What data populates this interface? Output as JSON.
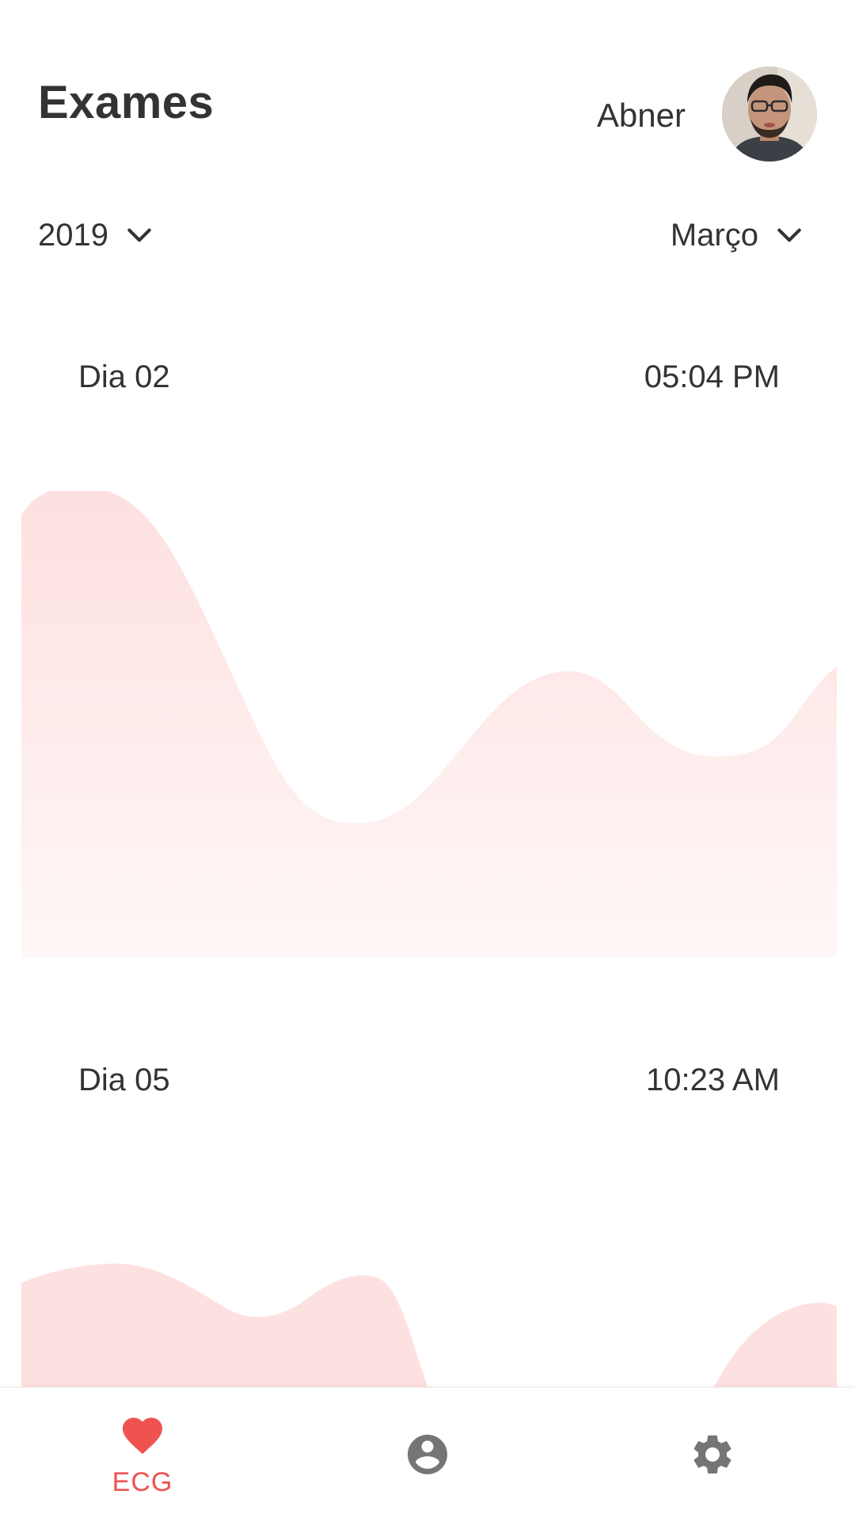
{
  "header": {
    "title": "Exames",
    "user_name": "Abner"
  },
  "filters": {
    "year": "2019",
    "month": "Março"
  },
  "exams": [
    {
      "day": "Dia 02",
      "time": "05:04 PM"
    },
    {
      "day": "Dia 05",
      "time": "10:23 AM"
    }
  ],
  "bottom_nav": {
    "items": [
      {
        "label": "ECG",
        "icon": "heart-icon",
        "active": true
      },
      {
        "label": "",
        "icon": "account-circle-icon",
        "active": false
      },
      {
        "label": "",
        "icon": "gear-icon",
        "active": false
      }
    ],
    "active_color": "#ef5350",
    "inactive_color": "#757575"
  },
  "colors": {
    "accent": "#ef5350",
    "wave_fill": "#fde2e1",
    "text": "#333333"
  }
}
